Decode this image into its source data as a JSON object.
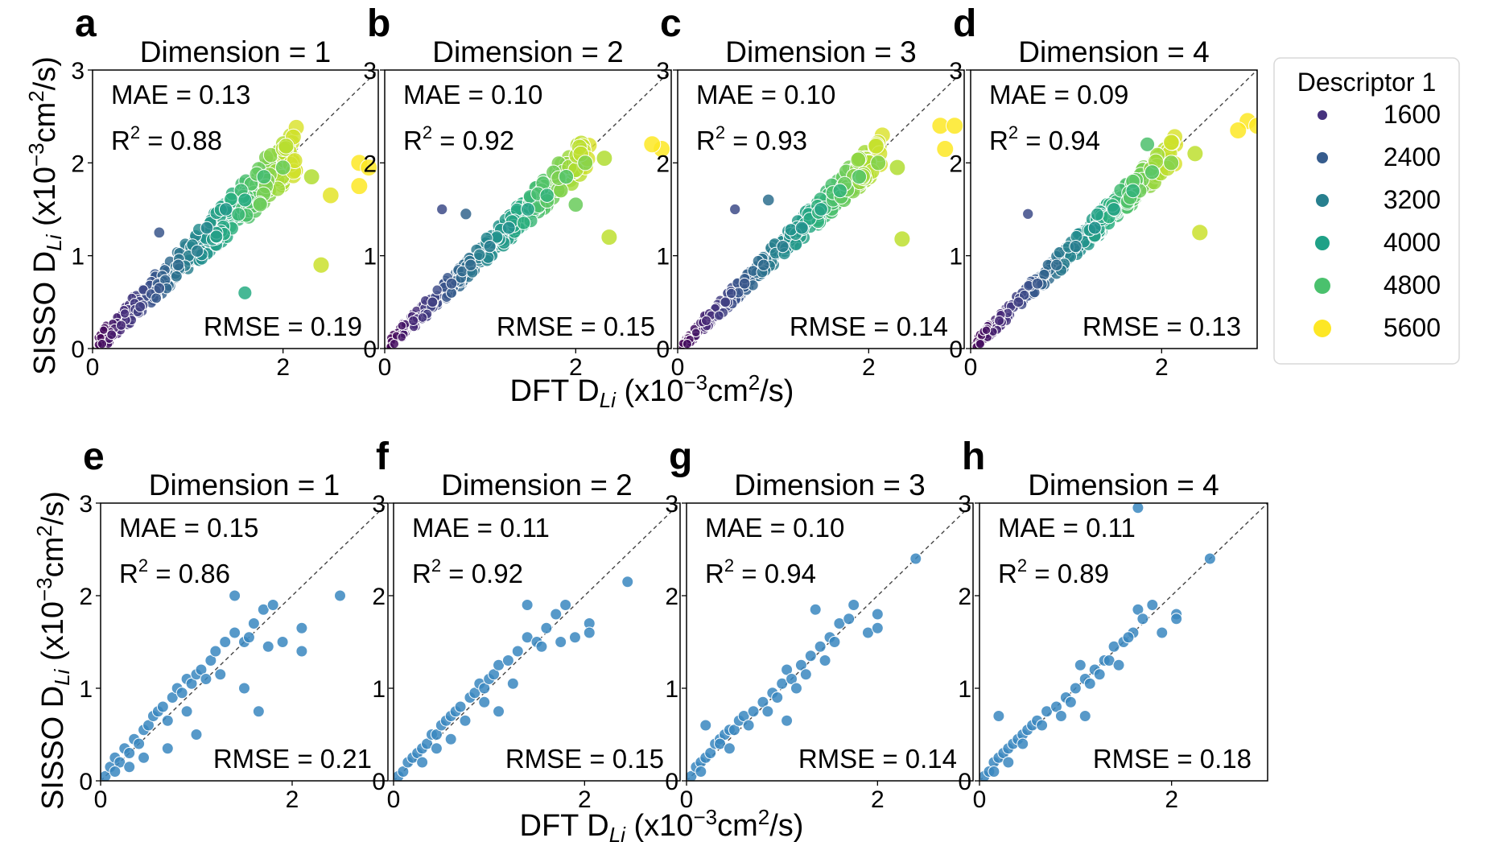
{
  "legend": {
    "title": "Descriptor 1",
    "entries": [
      {
        "label": "1600",
        "color": "#46327e",
        "size": 6
      },
      {
        "label": "2400",
        "color": "#365c8d",
        "size": 7
      },
      {
        "label": "3200",
        "color": "#277f8e",
        "size": 8
      },
      {
        "label": "4000",
        "color": "#1fa187",
        "size": 9
      },
      {
        "label": "4800",
        "color": "#4ac16d",
        "size": 10
      },
      {
        "label": "5600",
        "color": "#fde725",
        "size": 11
      }
    ]
  },
  "axis_labels": {
    "top": {
      "x": "DFT D_Li (x10^-3 cm^2/s)",
      "y": "SISSO D_Li (x10^-3 cm^2/s)"
    },
    "bottom": {
      "x": "DFT D_Li (x10^-3 cm^2/s)",
      "y": "SISSO D_Li (x10^-3 cm^2/s)"
    }
  },
  "chart_data": [
    {
      "type": "scatter",
      "panel": "a",
      "title": "Dimension = 1",
      "mae": "MAE = 0.13",
      "r2": "0.88",
      "rmse": "RMSE = 0.19",
      "xlim": [
        0,
        3
      ],
      "ylim": [
        0,
        3
      ],
      "xticks": [
        0,
        2
      ],
      "yticks": [
        0,
        1,
        2,
        3
      ],
      "diagonal": true,
      "colored": true,
      "seed": 11,
      "scatter": 0.18,
      "points": [
        [
          0.1,
          0.05
        ],
        [
          0.2,
          0.15
        ],
        [
          0.3,
          0.25
        ],
        [
          0.5,
          0.45
        ],
        [
          0.7,
          0.65
        ],
        [
          0.9,
          0.9
        ],
        [
          1.1,
          1.05
        ],
        [
          1.2,
          1.3
        ],
        [
          1.4,
          1.5
        ],
        [
          1.6,
          1.6
        ],
        [
          1.8,
          1.85
        ],
        [
          2.0,
          1.95
        ],
        [
          2.3,
          1.85
        ],
        [
          2.8,
          2.0
        ],
        [
          2.9,
          1.95
        ],
        [
          2.8,
          1.75
        ],
        [
          2.5,
          1.65
        ],
        [
          2.4,
          0.9
        ],
        [
          1.6,
          0.6
        ],
        [
          0.7,
          1.25
        ]
      ]
    },
    {
      "type": "scatter",
      "panel": "b",
      "title": "Dimension = 2",
      "mae": "MAE = 0.10",
      "r2": "0.92",
      "rmse": "RMSE = 0.15",
      "xlim": [
        0,
        3
      ],
      "ylim": [
        0,
        3
      ],
      "xticks": [
        0,
        2
      ],
      "yticks": [
        0,
        1,
        2,
        3
      ],
      "diagonal": true,
      "colored": true,
      "seed": 23,
      "scatter": 0.13,
      "points": [
        [
          0.1,
          0.05
        ],
        [
          0.3,
          0.3
        ],
        [
          0.5,
          0.5
        ],
        [
          0.7,
          0.7
        ],
        [
          0.9,
          0.9
        ],
        [
          1.1,
          1.1
        ],
        [
          1.3,
          1.3
        ],
        [
          1.5,
          1.5
        ],
        [
          1.7,
          1.65
        ],
        [
          1.9,
          1.85
        ],
        [
          2.1,
          2.0
        ],
        [
          2.3,
          2.05
        ],
        [
          2.9,
          2.15
        ],
        [
          2.8,
          2.2
        ],
        [
          2.35,
          1.2
        ],
        [
          0.6,
          1.5
        ],
        [
          0.85,
          1.45
        ],
        [
          2.0,
          1.55
        ]
      ]
    },
    {
      "type": "scatter",
      "panel": "c",
      "title": "Dimension = 3",
      "mae": "MAE = 0.10",
      "r2": "0.93",
      "rmse": "RMSE = 0.14",
      "xlim": [
        0,
        3
      ],
      "ylim": [
        0,
        3
      ],
      "xticks": [
        0,
        2
      ],
      "yticks": [
        0,
        1,
        2,
        3
      ],
      "diagonal": true,
      "colored": true,
      "seed": 37,
      "scatter": 0.12,
      "points": [
        [
          0.1,
          0.05
        ],
        [
          0.3,
          0.3
        ],
        [
          0.5,
          0.5
        ],
        [
          0.7,
          0.7
        ],
        [
          0.9,
          0.9
        ],
        [
          1.1,
          1.1
        ],
        [
          1.3,
          1.3
        ],
        [
          1.5,
          1.5
        ],
        [
          1.7,
          1.7
        ],
        [
          1.9,
          1.85
        ],
        [
          2.1,
          2.0
        ],
        [
          2.3,
          1.95
        ],
        [
          2.75,
          2.4
        ],
        [
          2.9,
          2.4
        ],
        [
          2.8,
          2.15
        ],
        [
          2.35,
          1.18
        ],
        [
          0.6,
          1.5
        ],
        [
          0.95,
          1.6
        ]
      ]
    },
    {
      "type": "scatter",
      "panel": "d",
      "title": "Dimension = 4",
      "mae": "MAE = 0.09",
      "r2": "0.94",
      "rmse": "RMSE = 0.13",
      "xlim": [
        0,
        3
      ],
      "ylim": [
        0,
        3
      ],
      "xticks": [
        0,
        2
      ],
      "yticks": [
        0,
        1,
        2,
        3
      ],
      "diagonal": true,
      "colored": true,
      "seed": 41,
      "scatter": 0.11,
      "points": [
        [
          0.1,
          0.05
        ],
        [
          0.3,
          0.3
        ],
        [
          0.5,
          0.5
        ],
        [
          0.7,
          0.7
        ],
        [
          0.9,
          0.9
        ],
        [
          1.1,
          1.1
        ],
        [
          1.3,
          1.3
        ],
        [
          1.5,
          1.5
        ],
        [
          1.7,
          1.7
        ],
        [
          1.9,
          1.9
        ],
        [
          2.1,
          2.0
        ],
        [
          2.35,
          2.1
        ],
        [
          2.9,
          2.45
        ],
        [
          3.0,
          2.4
        ],
        [
          2.8,
          2.35
        ],
        [
          2.4,
          1.25
        ],
        [
          1.85,
          2.2
        ],
        [
          0.6,
          1.45
        ]
      ]
    },
    {
      "type": "scatter",
      "panel": "e",
      "title": "Dimension = 1",
      "mae": "MAE = 0.15",
      "r2": "0.86",
      "rmse": "RMSE = 0.21",
      "xlim": [
        0,
        3
      ],
      "ylim": [
        0,
        3
      ],
      "xticks": [
        0,
        2
      ],
      "yticks": [
        0,
        1,
        2,
        3
      ],
      "diagonal": true,
      "colored": false,
      "color": "#3a87c0",
      "points": [
        [
          0.05,
          0.05
        ],
        [
          0.1,
          0.15
        ],
        [
          0.15,
          0.25
        ],
        [
          0.2,
          0.2
        ],
        [
          0.25,
          0.35
        ],
        [
          0.3,
          0.3
        ],
        [
          0.35,
          0.45
        ],
        [
          0.4,
          0.4
        ],
        [
          0.45,
          0.55
        ],
        [
          0.5,
          0.6
        ],
        [
          0.55,
          0.7
        ],
        [
          0.6,
          0.75
        ],
        [
          0.65,
          0.8
        ],
        [
          0.7,
          0.65
        ],
        [
          0.75,
          0.9
        ],
        [
          0.8,
          1.0
        ],
        [
          0.85,
          0.95
        ],
        [
          0.9,
          1.1
        ],
        [
          0.95,
          1.05
        ],
        [
          1.0,
          1.15
        ],
        [
          1.05,
          1.2
        ],
        [
          1.1,
          1.1
        ],
        [
          1.15,
          1.3
        ],
        [
          1.2,
          1.4
        ],
        [
          1.3,
          1.5
        ],
        [
          1.4,
          1.6
        ],
        [
          1.5,
          1.5
        ],
        [
          1.6,
          1.7
        ],
        [
          1.7,
          1.85
        ],
        [
          1.8,
          1.9
        ],
        [
          1.9,
          1.5
        ],
        [
          2.1,
          1.65
        ],
        [
          2.1,
          1.4
        ],
        [
          2.5,
          2.0
        ],
        [
          1.4,
          2.0
        ],
        [
          1.5,
          1.0
        ],
        [
          1.65,
          0.75
        ],
        [
          1.0,
          0.5
        ],
        [
          0.7,
          0.35
        ],
        [
          0.3,
          0.15
        ],
        [
          0.15,
          0.1
        ],
        [
          0.45,
          0.25
        ],
        [
          0.9,
          0.75
        ],
        [
          1.25,
          1.15
        ],
        [
          1.55,
          1.55
        ],
        [
          1.75,
          1.45
        ]
      ]
    },
    {
      "type": "scatter",
      "panel": "f",
      "title": "Dimension = 2",
      "mae": "MAE = 0.11",
      "r2": "0.92",
      "rmse": "RMSE = 0.15",
      "xlim": [
        0,
        3
      ],
      "ylim": [
        0,
        3
      ],
      "xticks": [
        0,
        2
      ],
      "yticks": [
        0,
        1,
        2,
        3
      ],
      "diagonal": true,
      "colored": false,
      "color": "#3a87c0",
      "points": [
        [
          0.05,
          0.05
        ],
        [
          0.1,
          0.1
        ],
        [
          0.15,
          0.2
        ],
        [
          0.2,
          0.25
        ],
        [
          0.25,
          0.3
        ],
        [
          0.3,
          0.35
        ],
        [
          0.35,
          0.4
        ],
        [
          0.4,
          0.5
        ],
        [
          0.45,
          0.5
        ],
        [
          0.5,
          0.6
        ],
        [
          0.55,
          0.65
        ],
        [
          0.6,
          0.7
        ],
        [
          0.65,
          0.75
        ],
        [
          0.7,
          0.8
        ],
        [
          0.8,
          0.9
        ],
        [
          0.85,
          0.95
        ],
        [
          0.9,
          1.05
        ],
        [
          0.95,
          1.0
        ],
        [
          1.0,
          1.1
        ],
        [
          1.05,
          1.15
        ],
        [
          1.1,
          1.25
        ],
        [
          1.2,
          1.3
        ],
        [
          1.3,
          1.4
        ],
        [
          1.4,
          1.55
        ],
        [
          1.5,
          1.5
        ],
        [
          1.6,
          1.65
        ],
        [
          1.7,
          1.8
        ],
        [
          1.8,
          1.9
        ],
        [
          1.9,
          1.55
        ],
        [
          2.05,
          1.7
        ],
        [
          2.05,
          1.6
        ],
        [
          2.45,
          2.15
        ],
        [
          1.4,
          1.9
        ],
        [
          1.1,
          0.75
        ],
        [
          0.6,
          0.45
        ],
        [
          0.3,
          0.2
        ],
        [
          1.25,
          1.05
        ],
        [
          1.55,
          1.45
        ],
        [
          1.75,
          1.5
        ],
        [
          0.75,
          0.65
        ],
        [
          0.45,
          0.35
        ],
        [
          0.95,
          0.85
        ]
      ]
    },
    {
      "type": "scatter",
      "panel": "g",
      "title": "Dimension = 3",
      "mae": "MAE = 0.10",
      "r2": "0.94",
      "rmse": "RMSE = 0.14",
      "xlim": [
        0,
        3
      ],
      "ylim": [
        0,
        3
      ],
      "xticks": [
        0,
        2
      ],
      "yticks": [
        0,
        1,
        2,
        3
      ],
      "diagonal": true,
      "colored": false,
      "color": "#3a87c0",
      "points": [
        [
          0.05,
          0.05
        ],
        [
          0.1,
          0.15
        ],
        [
          0.15,
          0.2
        ],
        [
          0.2,
          0.25
        ],
        [
          0.25,
          0.3
        ],
        [
          0.3,
          0.4
        ],
        [
          0.35,
          0.45
        ],
        [
          0.4,
          0.5
        ],
        [
          0.45,
          0.55
        ],
        [
          0.5,
          0.55
        ],
        [
          0.55,
          0.65
        ],
        [
          0.6,
          0.7
        ],
        [
          0.7,
          0.75
        ],
        [
          0.8,
          0.85
        ],
        [
          0.9,
          0.95
        ],
        [
          1.0,
          1.05
        ],
        [
          1.05,
          1.2
        ],
        [
          1.1,
          1.1
        ],
        [
          1.2,
          1.25
        ],
        [
          1.3,
          1.35
        ],
        [
          1.35,
          1.85
        ],
        [
          1.4,
          1.45
        ],
        [
          1.5,
          1.55
        ],
        [
          1.6,
          1.7
        ],
        [
          1.7,
          1.75
        ],
        [
          1.75,
          1.9
        ],
        [
          1.9,
          1.6
        ],
        [
          2.0,
          1.8
        ],
        [
          2.0,
          1.65
        ],
        [
          2.4,
          2.4
        ],
        [
          1.05,
          0.65
        ],
        [
          0.2,
          0.6
        ],
        [
          0.35,
          0.4
        ],
        [
          0.65,
          0.6
        ],
        [
          0.95,
          0.9
        ],
        [
          1.25,
          1.15
        ],
        [
          1.55,
          1.5
        ],
        [
          1.45,
          1.3
        ],
        [
          0.85,
          0.75
        ],
        [
          0.15,
          0.1
        ],
        [
          0.45,
          0.35
        ],
        [
          1.15,
          1.0
        ]
      ]
    },
    {
      "type": "scatter",
      "panel": "h",
      "title": "Dimension = 4",
      "mae": "MAE = 0.11",
      "r2": "0.89",
      "rmse": "RMSE = 0.18",
      "xlim": [
        0,
        3
      ],
      "ylim": [
        0,
        3
      ],
      "xticks": [
        0,
        2
      ],
      "yticks": [
        0,
        1,
        2,
        3
      ],
      "diagonal": true,
      "colored": false,
      "color": "#3a87c0",
      "points": [
        [
          0.05,
          0.05
        ],
        [
          0.1,
          0.1
        ],
        [
          0.15,
          0.2
        ],
        [
          0.2,
          0.25
        ],
        [
          0.25,
          0.3
        ],
        [
          0.3,
          0.35
        ],
        [
          0.35,
          0.4
        ],
        [
          0.4,
          0.45
        ],
        [
          0.45,
          0.5
        ],
        [
          0.5,
          0.55
        ],
        [
          0.55,
          0.6
        ],
        [
          0.6,
          0.65
        ],
        [
          0.7,
          0.75
        ],
        [
          0.8,
          0.8
        ],
        [
          0.9,
          0.9
        ],
        [
          1.0,
          1.0
        ],
        [
          1.05,
          1.25
        ],
        [
          1.1,
          1.1
        ],
        [
          1.2,
          1.2
        ],
        [
          1.3,
          1.3
        ],
        [
          1.35,
          1.3
        ],
        [
          1.4,
          1.45
        ],
        [
          1.5,
          1.5
        ],
        [
          1.6,
          1.6
        ],
        [
          1.65,
          1.85
        ],
        [
          1.7,
          1.75
        ],
        [
          1.8,
          1.9
        ],
        [
          1.9,
          1.6
        ],
        [
          2.05,
          1.8
        ],
        [
          2.05,
          1.75
        ],
        [
          2.4,
          2.4
        ],
        [
          1.65,
          2.95
        ],
        [
          1.1,
          0.7
        ],
        [
          0.2,
          0.7
        ],
        [
          0.3,
          0.2
        ],
        [
          0.65,
          0.6
        ],
        [
          0.95,
          0.85
        ],
        [
          1.25,
          1.15
        ],
        [
          1.55,
          1.55
        ],
        [
          1.45,
          1.25
        ],
        [
          0.85,
          0.7
        ],
        [
          0.15,
          0.1
        ],
        [
          0.45,
          0.4
        ],
        [
          1.15,
          1.05
        ]
      ]
    }
  ]
}
